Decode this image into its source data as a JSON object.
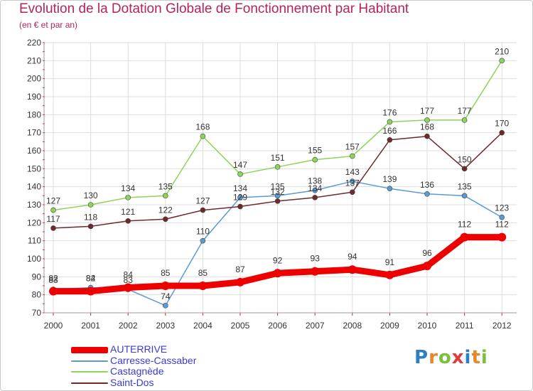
{
  "title": "Evolution de la Dotation Globale de Fonctionnement par Habitant",
  "subtitle": "(en € et par an)",
  "logo": {
    "text": "Proxiti",
    "letter_colors": [
      "#2e7fc1",
      "#e8862a",
      "#7bbf3a",
      "#e03a3a",
      "#2e7fc1",
      "#e8862a",
      "#7bbf3a"
    ]
  },
  "chart_data": {
    "type": "line",
    "x": [
      "2000",
      "2001",
      "2002",
      "2003",
      "2004",
      "2005",
      "2006",
      "2007",
      "2008",
      "2009",
      "2010",
      "2011",
      "2012"
    ],
    "ylim": [
      70,
      220
    ],
    "yticks": [
      70,
      80,
      90,
      100,
      110,
      120,
      130,
      140,
      150,
      160,
      170,
      180,
      190,
      200,
      210,
      220
    ],
    "grid": true,
    "legend_position": "bottom-left",
    "series": [
      {
        "name": "AUTERRIVE",
        "color": "#ee0000",
        "values": [
          82,
          82,
          84,
          85,
          85,
          87,
          92,
          93,
          94,
          91,
          96,
          112,
          112
        ]
      },
      {
        "name": "Carresse-Cassaber",
        "color": "#5b9bd5",
        "values": [
          83,
          84,
          83,
          74,
          110,
          134,
          135,
          138,
          143,
          139,
          136,
          135,
          123
        ]
      },
      {
        "name": "Castagnède",
        "color": "#8ed35a",
        "values": [
          127,
          130,
          134,
          135,
          168,
          147,
          151,
          155,
          157,
          176,
          177,
          177,
          210
        ]
      },
      {
        "name": "Saint-Dos",
        "color": "#6e2a2a",
        "values": [
          117,
          118,
          121,
          122,
          127,
          129,
          132,
          134,
          137,
          166,
          168,
          150,
          170
        ]
      }
    ]
  }
}
